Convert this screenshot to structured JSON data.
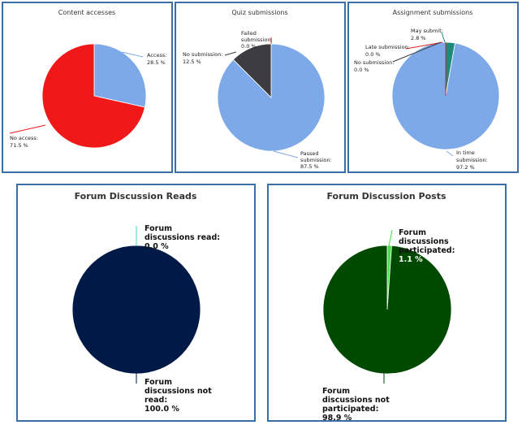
{
  "chart_data": [
    {
      "type": "pie",
      "title": "Content accesses",
      "slices": [
        {
          "label": "Access:",
          "value": 28.5,
          "value_text": "28.5 %",
          "color": "#7ea9e8"
        },
        {
          "label": "No access:",
          "value": 71.5,
          "value_text": "71.5 %",
          "color": "#f01818"
        }
      ]
    },
    {
      "type": "pie",
      "title": "Quiz submissions",
      "slices": [
        {
          "label": "Passed submission:",
          "value": 87.5,
          "value_text": "87.5 %",
          "color": "#7ea9e8"
        },
        {
          "label": "No submission:",
          "value": 12.5,
          "value_text": "12.5 %",
          "color": "#3c3c42"
        },
        {
          "label": "Failed submission:",
          "value": 0.0,
          "value_text": "0.0 %",
          "color": "#e02020"
        }
      ]
    },
    {
      "type": "pie",
      "title": "Assignment submissions",
      "slices": [
        {
          "label": "In time submission:",
          "value": 97.2,
          "value_text": "97.2 %",
          "color": "#7ea9e8"
        },
        {
          "label": "No submission:",
          "value": 0.0,
          "value_text": "0.0 %",
          "color": "#3c3c42"
        },
        {
          "label": "Late submission:",
          "value": 0.0,
          "value_text": "0.0 %",
          "color": "#e02020"
        },
        {
          "label": "May submit:",
          "value": 2.8,
          "value_text": "2.8 %",
          "color": "#1e8a7a"
        }
      ]
    },
    {
      "type": "pie",
      "title": "Forum Discussion Reads",
      "slices": [
        {
          "label": "Forum discussions not read:",
          "value": 100.0,
          "value_text": "100.0 %",
          "color": "#001a47"
        },
        {
          "label": "Forum discussions read:",
          "value": 0.0,
          "value_text": "0.0 %",
          "color": "#41d9b8"
        }
      ]
    },
    {
      "type": "pie",
      "title": "Forum Discussion Posts",
      "slices": [
        {
          "label": "Forum discussions not participated:",
          "value": 98.9,
          "value_text": "98.9 %",
          "color": "#004a00"
        },
        {
          "label": "Forum discussions participated:",
          "value": 1.1,
          "value_text": "1.1 %",
          "color": "#44e044"
        }
      ]
    }
  ]
}
